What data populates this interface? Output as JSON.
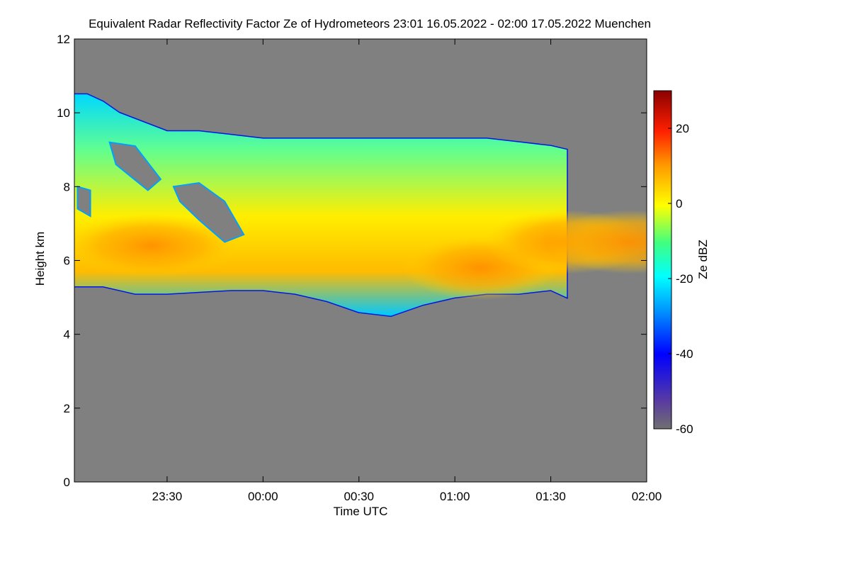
{
  "chart_data": {
    "type": "heatmap",
    "title": "Equivalent Radar Reflectivity Factor Ze of Hydrometeors   23:01 16.05.2022 - 02:00 17.05.2022 Muenchen",
    "xlabel": "Time UTC",
    "ylabel": "Height km",
    "x_ticks": [
      "23:30",
      "00:00",
      "00:30",
      "01:00",
      "01:30",
      "02:00"
    ],
    "x_range": [
      "23:01",
      "02:00"
    ],
    "ylim": [
      0,
      12
    ],
    "y_ticks": [
      0,
      2,
      4,
      6,
      8,
      10,
      12
    ],
    "colorbar": {
      "label": "Ze dBZ",
      "range": [
        -60,
        30
      ],
      "ticks": [
        -60,
        -40,
        -20,
        0,
        20
      ]
    },
    "background_color": "#808080",
    "cloud_base_km": [
      [
        -30,
        5.3
      ],
      [
        -20,
        5.3
      ],
      [
        -10,
        5.1
      ],
      [
        0,
        5.1
      ],
      [
        10,
        5.15
      ],
      [
        20,
        5.2
      ],
      [
        30,
        5.2
      ],
      [
        40,
        5.1
      ],
      [
        50,
        4.9
      ],
      [
        60,
        4.6
      ],
      [
        70,
        4.5
      ],
      [
        80,
        4.8
      ],
      [
        90,
        5.0
      ],
      [
        100,
        5.1
      ],
      [
        110,
        5.1
      ],
      [
        120,
        5.2
      ],
      [
        125,
        5.0
      ]
    ],
    "cloud_top_km": [
      [
        -30,
        10.5
      ],
      [
        -25,
        10.5
      ],
      [
        -20,
        10.3
      ],
      [
        -15,
        10.0
      ],
      [
        0,
        9.5
      ],
      [
        10,
        9.5
      ],
      [
        20,
        9.4
      ],
      [
        30,
        9.3
      ],
      [
        40,
        9.3
      ],
      [
        50,
        9.3
      ],
      [
        60,
        9.3
      ],
      [
        70,
        9.3
      ],
      [
        80,
        9.3
      ],
      [
        90,
        9.3
      ],
      [
        100,
        9.3
      ],
      [
        110,
        9.2
      ],
      [
        120,
        9.1
      ],
      [
        125,
        9.0
      ]
    ],
    "core_reflectivity": [
      {
        "time": "01:08",
        "height_km": 5.8,
        "dbz": 8
      },
      {
        "time": "01:35",
        "height_km": 6.5,
        "dbz": 5
      },
      {
        "time": "01:55",
        "height_km": 6.5,
        "dbz": 6
      },
      {
        "time": "23:25",
        "height_km": 6.4,
        "dbz": 0
      }
    ]
  }
}
